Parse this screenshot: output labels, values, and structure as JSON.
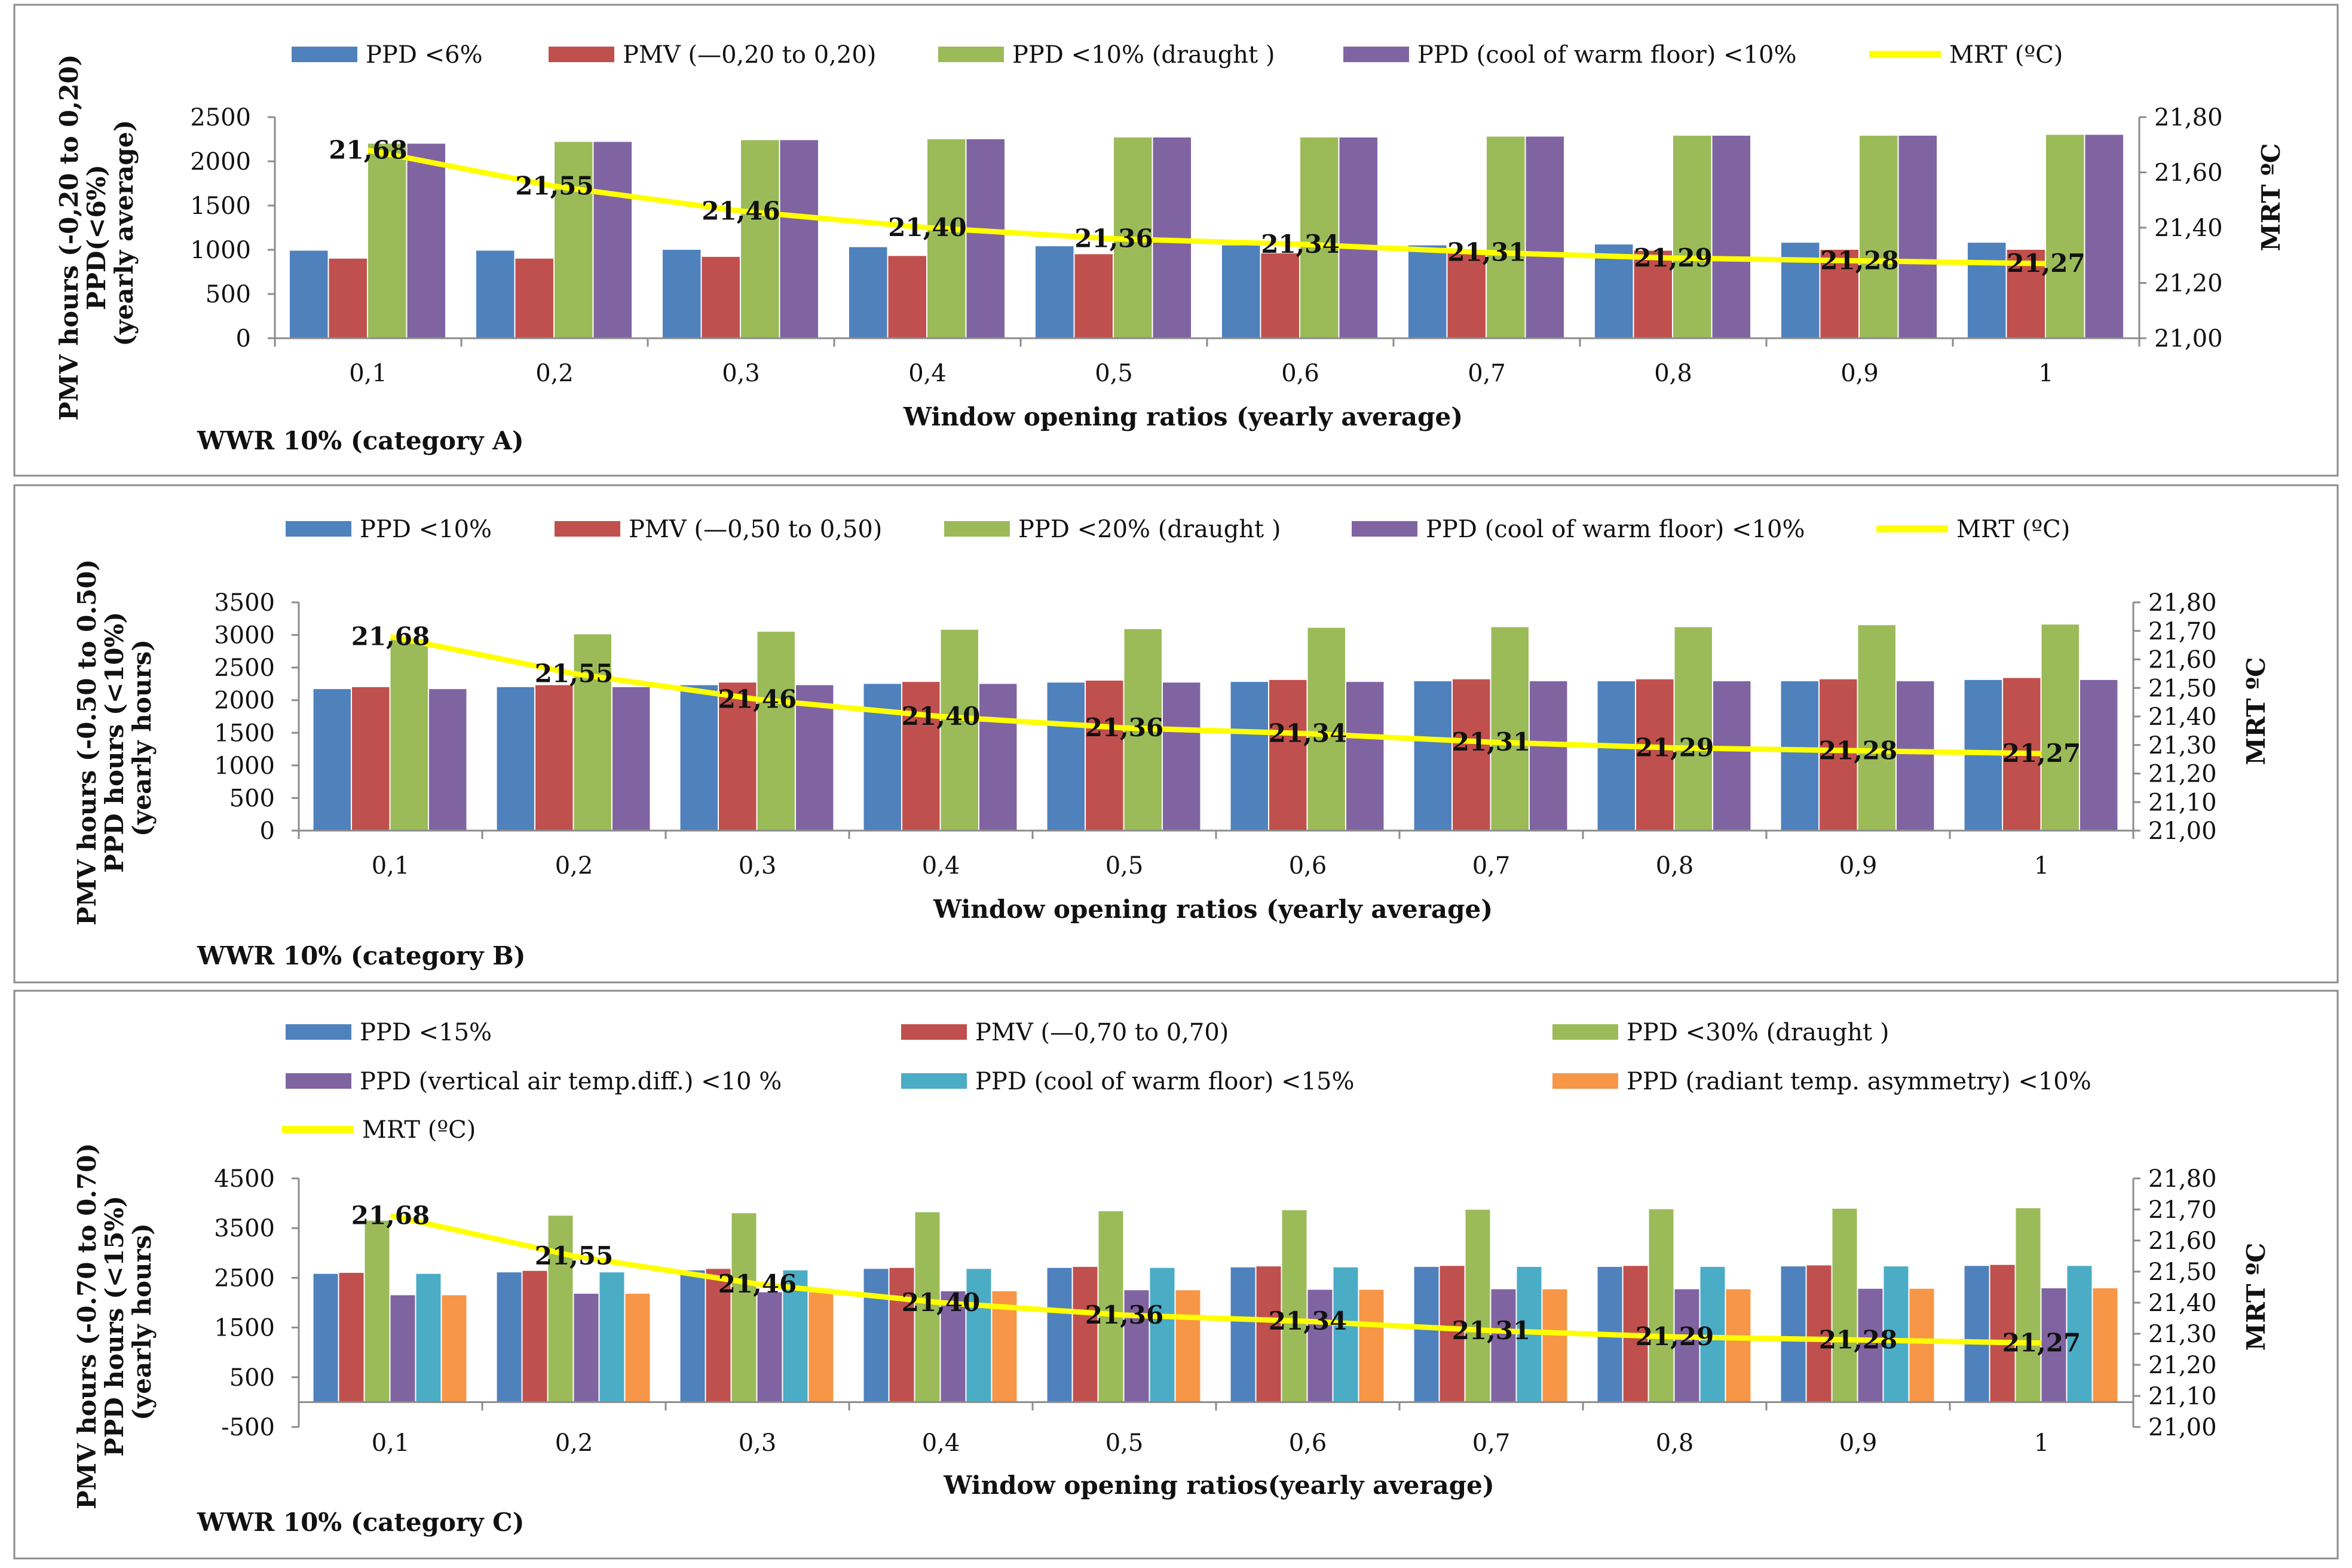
{
  "colors": {
    "blue": "#4F81BD",
    "red": "#C0504D",
    "green": "#9BBB59",
    "purple": "#8064A2",
    "teal": "#4BACC6",
    "orange": "#F79646",
    "yellow": "#FFFF00"
  },
  "chart_data": [
    {
      "type": "bar",
      "caption": "WWR 10% (category A)",
      "xlabel": "Window  opening ratios (yearly average)",
      "ylabel_lines": [
        "PMV hours (-0,20 to 0,20)",
        "PPD(<6%)",
        "(yearly average)"
      ],
      "y2label": "MRT ºC",
      "categories": [
        "0,1",
        "0,2",
        "0,3",
        "0,4",
        "0,5",
        "0,6",
        "0,7",
        "0,8",
        "0,9",
        "1"
      ],
      "ylim": [
        0,
        2500
      ],
      "yticks": [
        0,
        500,
        1000,
        1500,
        2000,
        2500
      ],
      "yticklabels": [
        "0",
        "500",
        "1000",
        "1500",
        "2000",
        "2500"
      ],
      "y2lim": [
        21.0,
        21.8
      ],
      "y2ticks": [
        21.0,
        21.2,
        21.4,
        21.6,
        21.8
      ],
      "y2ticklabels": [
        "21,00",
        "21,20",
        "21,40",
        "21,60",
        "21,80"
      ],
      "series": [
        {
          "name": "PPD <6%",
          "color": "blue",
          "values": [
            990,
            990,
            1000,
            1030,
            1040,
            1050,
            1050,
            1060,
            1080,
            1080
          ]
        },
        {
          "name": "PMV (—0,20 to 0,20)",
          "color": "red",
          "values": [
            900,
            900,
            920,
            930,
            950,
            960,
            980,
            990,
            1000,
            1000
          ]
        },
        {
          "name": "PPD <10% (draught )",
          "color": "green",
          "values": [
            2200,
            2220,
            2240,
            2250,
            2270,
            2270,
            2280,
            2290,
            2290,
            2300
          ]
        },
        {
          "name": "PPD (cool of warm floor) <10%",
          "color": "purple",
          "values": [
            2200,
            2220,
            2240,
            2250,
            2270,
            2270,
            2280,
            2290,
            2290,
            2300
          ]
        }
      ],
      "line": {
        "name": "MRT (ºC)",
        "color": "yellow",
        "values": [
          21.68,
          21.55,
          21.46,
          21.4,
          21.36,
          21.34,
          21.31,
          21.29,
          21.28,
          21.27
        ],
        "labels": [
          "21,68",
          "21,55",
          "21,46",
          "21,40",
          "21,36",
          "21,34",
          "21,31",
          "21,29",
          "21,28",
          "21,27"
        ]
      }
    },
    {
      "type": "bar",
      "caption": "WWR 10% (category B)",
      "xlabel": "Window  opening ratios (yearly average)",
      "ylabel_lines": [
        "PMV hours (-0.50 to 0.50)",
        "PPD hours (<10%)",
        "(yearly hours)"
      ],
      "y2label": "MRT ºC",
      "categories": [
        "0,1",
        "0,2",
        "0,3",
        "0,4",
        "0,5",
        "0,6",
        "0,7",
        "0,8",
        "0,9",
        "1"
      ],
      "ylim": [
        0,
        3500
      ],
      "yticks": [
        0,
        500,
        1000,
        1500,
        2000,
        2500,
        3000,
        3500
      ],
      "yticklabels": [
        "0",
        "500",
        "1000",
        "1500",
        "2000",
        "2500",
        "3000",
        "3500"
      ],
      "y2lim": [
        21.0,
        21.8
      ],
      "y2ticks": [
        21.0,
        21.1,
        21.2,
        21.3,
        21.4,
        21.5,
        21.6,
        21.7,
        21.8
      ],
      "y2ticklabels": [
        "21,00",
        "21,10",
        "21,20",
        "21,30",
        "21,40",
        "21,50",
        "21,60",
        "21,70",
        "21,80"
      ],
      "series": [
        {
          "name": "PPD <10%",
          "color": "blue",
          "values": [
            2170,
            2200,
            2230,
            2250,
            2270,
            2280,
            2290,
            2290,
            2290,
            2310
          ]
        },
        {
          "name": "PMV (—0,50 to 0,50)",
          "color": "red",
          "values": [
            2200,
            2230,
            2270,
            2280,
            2300,
            2310,
            2320,
            2320,
            2320,
            2340
          ]
        },
        {
          "name": "PPD <20% (draught )",
          "color": "green",
          "values": [
            2930,
            3010,
            3050,
            3080,
            3090,
            3110,
            3120,
            3120,
            3150,
            3160
          ]
        },
        {
          "name": "PPD (cool of warm floor) <10%",
          "color": "purple",
          "values": [
            2170,
            2200,
            2230,
            2250,
            2270,
            2280,
            2290,
            2290,
            2290,
            2310
          ]
        }
      ],
      "line": {
        "name": "MRT (ºC)",
        "color": "yellow",
        "values": [
          21.68,
          21.55,
          21.46,
          21.4,
          21.36,
          21.34,
          21.31,
          21.29,
          21.28,
          21.27
        ],
        "labels": [
          "21,68",
          "21,55",
          "21,46",
          "21,40",
          "21,36",
          "21,34",
          "21,31",
          "21,29",
          "21,28",
          "21,27"
        ]
      }
    },
    {
      "type": "bar",
      "caption": "WWR 10% (category C)",
      "xlabel": "Window  opening ratios(yearly average)",
      "ylabel_lines": [
        "PMV hours (-0.70 to 0.70)",
        "PPD hours (<15%)",
        "(yearly hours)"
      ],
      "y2label": "MRT ºC",
      "categories": [
        "0,1",
        "0,2",
        "0,3",
        "0,4",
        "0,5",
        "0,6",
        "0,7",
        "0,8",
        "0,9",
        "1"
      ],
      "ylim": [
        -500,
        4500
      ],
      "yticks": [
        -500,
        500,
        1500,
        2500,
        3500,
        4500
      ],
      "yticklabels": [
        "-500",
        "500",
        "1500",
        "2500",
        "3500",
        "4500"
      ],
      "y2lim": [
        21.0,
        21.8
      ],
      "y2ticks": [
        21.0,
        21.1,
        21.2,
        21.3,
        21.4,
        21.5,
        21.6,
        21.7,
        21.8
      ],
      "y2ticklabels": [
        "21,00",
        "21,10",
        "21,20",
        "21,30",
        "21,40",
        "21,50",
        "21,60",
        "21,70",
        "21,80"
      ],
      "series": [
        {
          "name": "PPD <15%",
          "color": "blue",
          "values": [
            2580,
            2610,
            2650,
            2680,
            2700,
            2710,
            2720,
            2720,
            2730,
            2740
          ]
        },
        {
          "name": "PMV (—0,70 to 0,70)",
          "color": "red",
          "values": [
            2600,
            2640,
            2680,
            2700,
            2720,
            2730,
            2740,
            2740,
            2750,
            2760
          ]
        },
        {
          "name": "PPD <30% (draught )",
          "color": "green",
          "values": [
            3650,
            3750,
            3800,
            3820,
            3840,
            3860,
            3870,
            3880,
            3890,
            3900
          ]
        },
        {
          "name": "PPD (vertical air temp.diff.) <10 %",
          "color": "purple",
          "values": [
            2150,
            2180,
            2210,
            2230,
            2250,
            2260,
            2270,
            2270,
            2280,
            2290
          ]
        },
        {
          "name": "PPD (cool of warm floor) <15%",
          "color": "teal",
          "values": [
            2580,
            2610,
            2650,
            2680,
            2700,
            2710,
            2720,
            2720,
            2730,
            2740
          ]
        },
        {
          "name": "PPD (radiant temp. asymmetry) <10%",
          "color": "orange",
          "values": [
            2150,
            2180,
            2210,
            2230,
            2250,
            2260,
            2270,
            2270,
            2280,
            2290
          ]
        }
      ],
      "line": {
        "name": "MRT (ºC)",
        "color": "yellow",
        "values": [
          21.68,
          21.55,
          21.46,
          21.4,
          21.36,
          21.34,
          21.31,
          21.29,
          21.28,
          21.27
        ],
        "labels": [
          "21,68",
          "21,55",
          "21,46",
          "21,40",
          "21,36",
          "21,34",
          "21,31",
          "21,29",
          "21,28",
          "21,27"
        ]
      }
    }
  ]
}
